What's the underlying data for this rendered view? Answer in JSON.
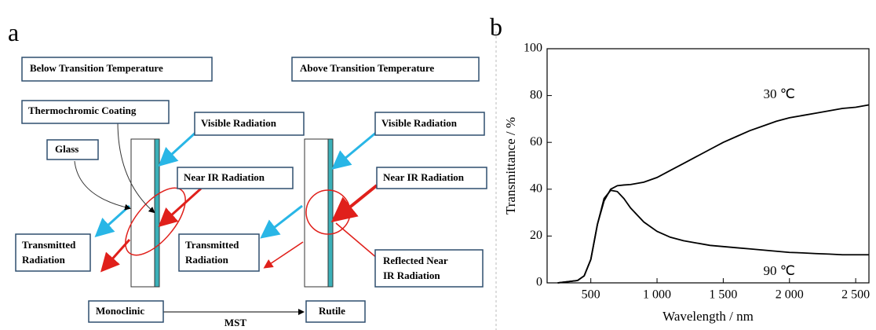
{
  "panel_a": {
    "label": "a",
    "below": "Below Transition Temperature",
    "above": "Above Transition Temperature",
    "coating": "Thermochromic Coating",
    "visible_left": "Visible Radiation",
    "visible_right": "Visible Radiation",
    "glass": "Glass",
    "nir_left": "Near IR Radiation",
    "nir_right": "Near IR Radiation",
    "transmitted_left": [
      "Transmitted",
      "Radiation"
    ],
    "transmitted_right": [
      "Transmitted",
      "Radiation"
    ],
    "reflected": [
      "Reflected Near",
      "IR Radiation"
    ],
    "monoclinic": "Monoclinic",
    "rutile": "Rutile",
    "mst": "MST"
  },
  "chart_data": {
    "type": "line",
    "panel_label": "b",
    "xlabel": "Wavelength / nm",
    "ylabel": "Transmittance / %",
    "xlim": [
      170,
      2600
    ],
    "ylim": [
      0,
      100
    ],
    "xticks": [
      500,
      {
        "value": 1000,
        "label": "1 000"
      },
      {
        "value": 1500,
        "label": "1 500"
      },
      {
        "value": 2000,
        "label": "2 000"
      },
      {
        "value": 2500,
        "label": "2 500"
      }
    ],
    "yticks": [
      0,
      20,
      40,
      60,
      80,
      100
    ],
    "x": [
      250,
      400,
      450,
      500,
      550,
      600,
      650,
      700,
      750,
      800,
      900,
      1000,
      1100,
      1200,
      1300,
      1400,
      1500,
      1600,
      1700,
      1800,
      1900,
      2000,
      2100,
      2200,
      2300,
      2400,
      2500,
      2600
    ],
    "series": [
      {
        "name": "30 ℃",
        "color": "#000000",
        "values": [
          0,
          1,
          3,
          10,
          25,
          35,
          40,
          41.5,
          41.8,
          42,
          43,
          45,
          48,
          51,
          54,
          57,
          60,
          62.5,
          65,
          67,
          69,
          70.5,
          71.5,
          72.5,
          73.5,
          74.5,
          75,
          76
        ]
      },
      {
        "name": "90 ℃",
        "color": "#000000",
        "values": [
          0,
          1,
          3,
          10,
          25,
          36,
          39.5,
          39,
          36,
          32,
          26,
          22,
          19.5,
          18,
          17,
          16,
          15.5,
          15,
          14.5,
          14,
          13.5,
          13,
          12.8,
          12.5,
          12.3,
          12,
          12,
          12
        ]
      }
    ]
  }
}
